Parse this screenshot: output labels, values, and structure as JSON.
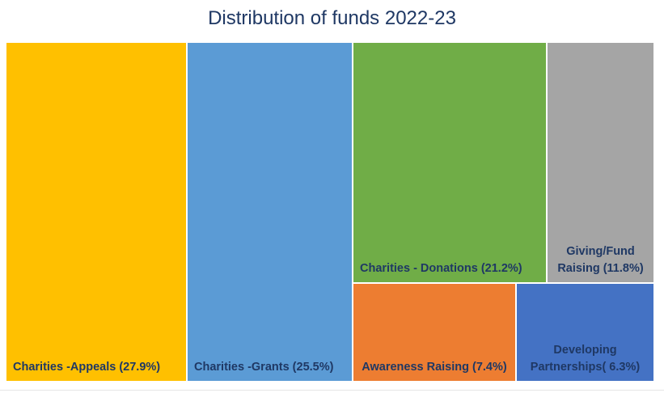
{
  "chart_data": {
    "type": "treemap",
    "title": "Distribution of funds 2022-23",
    "unit": "%",
    "items": [
      {
        "label": "Charities -Appeals (27.9%)",
        "name": "Charities -Appeals",
        "value": 27.9,
        "color": "#FFC000"
      },
      {
        "label": "Charities -Grants (25.5%)",
        "name": "Charities -Grants",
        "value": 25.5,
        "color": "#5B9BD5"
      },
      {
        "label": "Charities - Donations (21.2%)",
        "name": "Charities - Donations",
        "value": 21.2,
        "color": "#70AD47"
      },
      {
        "label": "Giving/Fund Raising (11.8%)",
        "name": "Giving/Fund Raising",
        "value": 11.8,
        "color": "#A5A5A5"
      },
      {
        "label": "Awareness Raising (7.4%)",
        "name": "Awareness Raising",
        "value": 7.4,
        "color": "#ED7D31"
      },
      {
        "label": "Developing Partnerships( 6.3%)",
        "name": "Developing Partnerships",
        "value": 6.3,
        "color": "#4472C4"
      }
    ]
  }
}
